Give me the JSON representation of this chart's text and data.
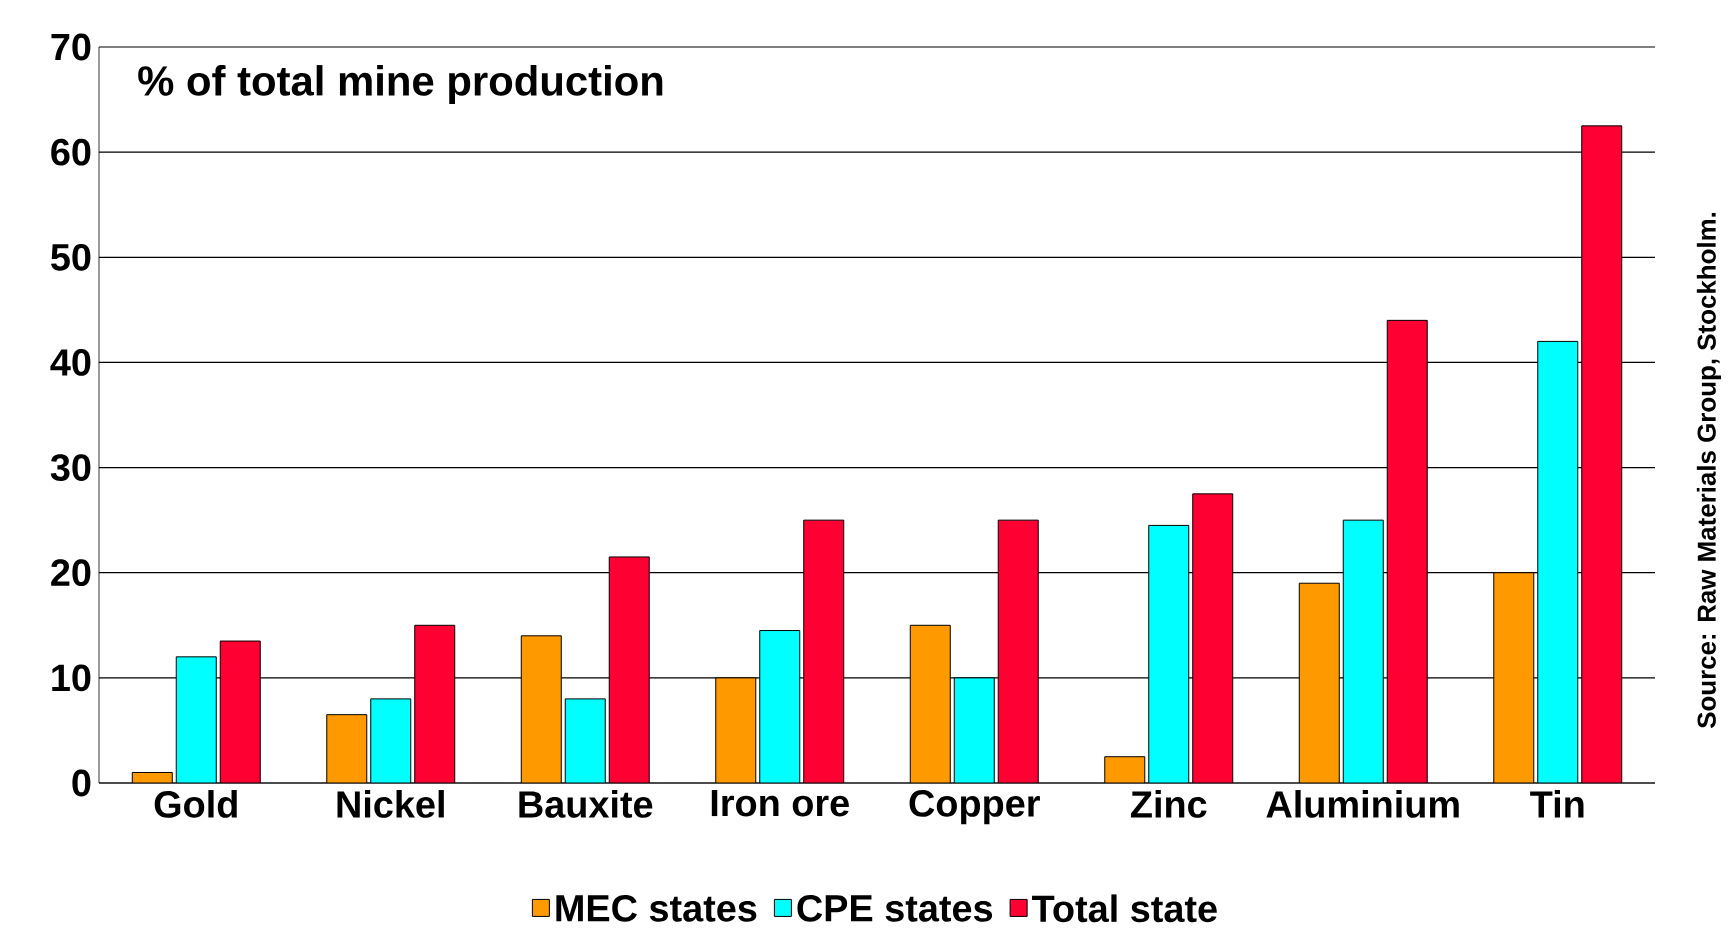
{
  "chart_data": {
    "type": "bar",
    "categories": [
      "Gold",
      "Nickel",
      "Bauxite",
      "Iron ore",
      "Copper",
      "Zinc",
      "Aluminium",
      "Tin"
    ],
    "series": [
      {
        "name": "MEC states",
        "color": "#ff9900",
        "values": [
          1,
          6.5,
          14,
          10,
          15,
          2.5,
          19,
          20
        ]
      },
      {
        "name": "CPE states",
        "color": "#00ffff",
        "values": [
          12,
          8,
          8,
          14.5,
          10,
          24.5,
          25,
          42
        ]
      },
      {
        "name": "Total state",
        "color": "#ff0033",
        "values": [
          13.5,
          15,
          21.5,
          25,
          25,
          27.5,
          44,
          62.5
        ]
      }
    ],
    "ylim": [
      0,
      70
    ],
    "yticks": [
      0,
      10,
      20,
      30,
      40,
      50,
      60,
      70
    ],
    "grid": "y",
    "legend": "bottom",
    "annotations": [
      "% of total mine production",
      "Source: Raw Materials Group, Stockholm."
    ]
  }
}
